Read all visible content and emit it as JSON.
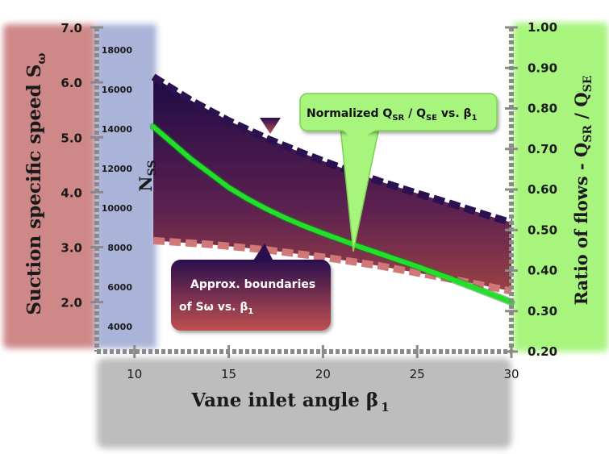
{
  "chart_data": {
    "type": "area",
    "xlabel": "Vane inlet angle β",
    "xlabel_sub": "1",
    "xlim": [
      8,
      30
    ],
    "xticks": [
      10,
      15,
      20,
      25,
      30
    ],
    "y_left": {
      "label": "Suction specific speed S",
      "label_sub": "ω",
      "lim": [
        1.1,
        7.0
      ],
      "ticks": [
        "2.0",
        "3.0",
        "4.0",
        "5.0",
        "6.0",
        "7.0"
      ]
    },
    "y_left_inner": {
      "label": "N",
      "label_sub": "SS",
      "ticks": [
        "4000",
        "6000",
        "8000",
        "10000",
        "12000",
        "14000",
        "16000",
        "18000"
      ]
    },
    "y_right": {
      "label": "Ratio of flows - Q",
      "label_sub1": "SR",
      "label_mid": " / Q",
      "label_sub2": "SE",
      "lim": [
        0.2,
        1.0
      ],
      "ticks": [
        "0.20",
        "0.30",
        "0.40",
        "0.50",
        "0.60",
        "0.70",
        "0.80",
        "0.90",
        "1.00"
      ]
    },
    "series": [
      {
        "name": "Upper boundary of Sω",
        "axis": "left",
        "x": [
          11,
          13,
          15,
          17,
          19,
          21,
          23,
          25,
          27,
          29,
          30
        ],
        "y": [
          6.1,
          5.67,
          5.3,
          4.98,
          4.7,
          4.44,
          4.2,
          3.98,
          3.77,
          3.55,
          3.45
        ]
      },
      {
        "name": "Lower boundary of Sω",
        "axis": "left",
        "x": [
          11,
          14,
          17,
          20,
          23,
          26,
          28,
          30
        ],
        "y": [
          3.12,
          3.05,
          2.95,
          2.82,
          2.66,
          2.47,
          2.34,
          2.2
        ]
      },
      {
        "name": "Normalized QSR / QSE vs. β1",
        "axis": "right",
        "x": [
          11,
          12,
          13,
          14,
          15,
          16,
          17,
          18,
          19,
          20,
          21,
          22,
          23,
          24,
          25,
          26,
          27,
          28,
          29,
          30
        ],
        "y": [
          0.755,
          0.715,
          0.675,
          0.64,
          0.605,
          0.577,
          0.552,
          0.53,
          0.51,
          0.492,
          0.475,
          0.458,
          0.442,
          0.426,
          0.41,
          0.393,
          0.376,
          0.358,
          0.34,
          0.322
        ]
      }
    ],
    "annotations": [
      {
        "id": "green_callout",
        "text": "Normalized Q",
        "sub1": "SR",
        "mid": " / Q",
        "sub2": "SE",
        "tail": " vs. β",
        "sub3": "1"
      },
      {
        "id": "red_callout",
        "line1": "Approx. boundaries",
        "line2": "of Sω vs. β",
        "sub": "1"
      }
    ],
    "colors": {
      "left_band": "#cf8888",
      "inner_band": "#aab3d8",
      "right_band": "#a8f57e",
      "bottom_band": "#bdbdbd",
      "green_line": "#22e02a",
      "area_top": "#2a0f4e",
      "area_bottom": "#8a3840",
      "upper_boundary": "#2c1150",
      "lower_boundary": "#d07878"
    }
  }
}
